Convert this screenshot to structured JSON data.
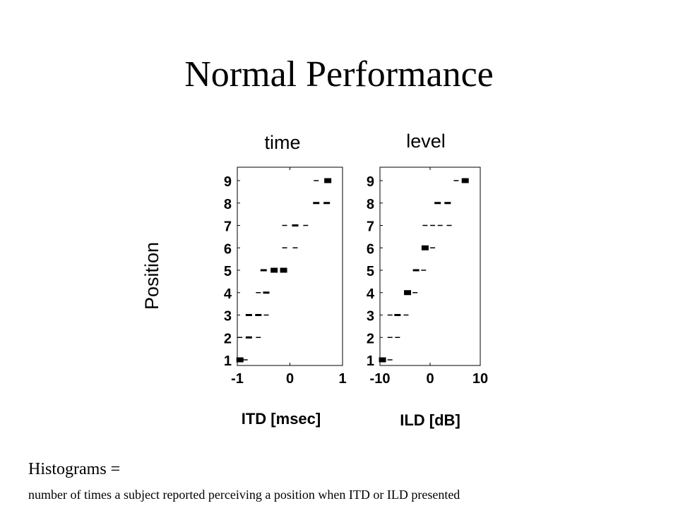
{
  "slide": {
    "title": "Normal Performance",
    "caption_heading": "Histograms =",
    "caption_text": "number of times a subject reported perceiving a position when  ITD or ILD presented"
  },
  "chart_data": [
    {
      "type": "heatmap",
      "title": "time",
      "xlabel": "ITD [msec]",
      "ylabel": "Position",
      "xlim": [
        -1,
        1
      ],
      "ylim": [
        1,
        9
      ],
      "x_ticks": [
        "-1",
        "0",
        "1"
      ],
      "y_ticks": [
        "1",
        "2",
        "3",
        "4",
        "5",
        "6",
        "7",
        "8",
        "9"
      ],
      "grid": false,
      "cells": [
        {
          "x": -0.95,
          "y": 1,
          "v": 3
        },
        {
          "x": -0.85,
          "y": 1,
          "v": 1
        },
        {
          "x": -0.95,
          "y": 2,
          "v": 1
        },
        {
          "x": -0.78,
          "y": 2,
          "v": 2
        },
        {
          "x": -0.6,
          "y": 2,
          "v": 1
        },
        {
          "x": -0.78,
          "y": 3,
          "v": 2
        },
        {
          "x": -0.6,
          "y": 3,
          "v": 2
        },
        {
          "x": -0.45,
          "y": 3,
          "v": 1
        },
        {
          "x": -0.6,
          "y": 4,
          "v": 1
        },
        {
          "x": -0.45,
          "y": 4,
          "v": 2
        },
        {
          "x": -0.5,
          "y": 5,
          "v": 2
        },
        {
          "x": -0.3,
          "y": 5,
          "v": 3
        },
        {
          "x": -0.12,
          "y": 5,
          "v": 3
        },
        {
          "x": -0.1,
          "y": 6,
          "v": 1
        },
        {
          "x": 0.1,
          "y": 6,
          "v": 1
        },
        {
          "x": -0.1,
          "y": 7,
          "v": 1
        },
        {
          "x": 0.1,
          "y": 7,
          "v": 2
        },
        {
          "x": 0.3,
          "y": 7,
          "v": 1
        },
        {
          "x": 0.5,
          "y": 8,
          "v": 2
        },
        {
          "x": 0.7,
          "y": 8,
          "v": 2
        },
        {
          "x": 0.5,
          "y": 9,
          "v": 1
        },
        {
          "x": 0.72,
          "y": 9,
          "v": 3
        }
      ]
    },
    {
      "type": "heatmap",
      "title": "level",
      "xlabel": "ILD [dB]",
      "ylabel": "",
      "xlim": [
        -10,
        10
      ],
      "ylim": [
        1,
        9
      ],
      "x_ticks": [
        "-10",
        "0",
        "10"
      ],
      "y_ticks": [
        "1",
        "2",
        "3",
        "4",
        "5",
        "6",
        "7",
        "8",
        "9"
      ],
      "grid": false,
      "cells": [
        {
          "x": -9.5,
          "y": 1,
          "v": 3
        },
        {
          "x": -8,
          "y": 1,
          "v": 1
        },
        {
          "x": -8,
          "y": 2,
          "v": 1
        },
        {
          "x": -6.5,
          "y": 2,
          "v": 1
        },
        {
          "x": -8,
          "y": 3,
          "v": 1
        },
        {
          "x": -6.5,
          "y": 3,
          "v": 2
        },
        {
          "x": -4.8,
          "y": 3,
          "v": 1
        },
        {
          "x": -4.5,
          "y": 4,
          "v": 3
        },
        {
          "x": -3,
          "y": 4,
          "v": 1
        },
        {
          "x": -2.8,
          "y": 5,
          "v": 2
        },
        {
          "x": -1.3,
          "y": 5,
          "v": 1
        },
        {
          "x": -1,
          "y": 6,
          "v": 3
        },
        {
          "x": 0.5,
          "y": 6,
          "v": 1
        },
        {
          "x": -1,
          "y": 7,
          "v": 1
        },
        {
          "x": 0.5,
          "y": 7,
          "v": 1
        },
        {
          "x": 2,
          "y": 7,
          "v": 1
        },
        {
          "x": 3.8,
          "y": 7,
          "v": 1
        },
        {
          "x": 1.5,
          "y": 8,
          "v": 2
        },
        {
          "x": 3.5,
          "y": 8,
          "v": 2
        },
        {
          "x": 5.2,
          "y": 9,
          "v": 1
        },
        {
          "x": 7,
          "y": 9,
          "v": 3
        }
      ]
    }
  ]
}
